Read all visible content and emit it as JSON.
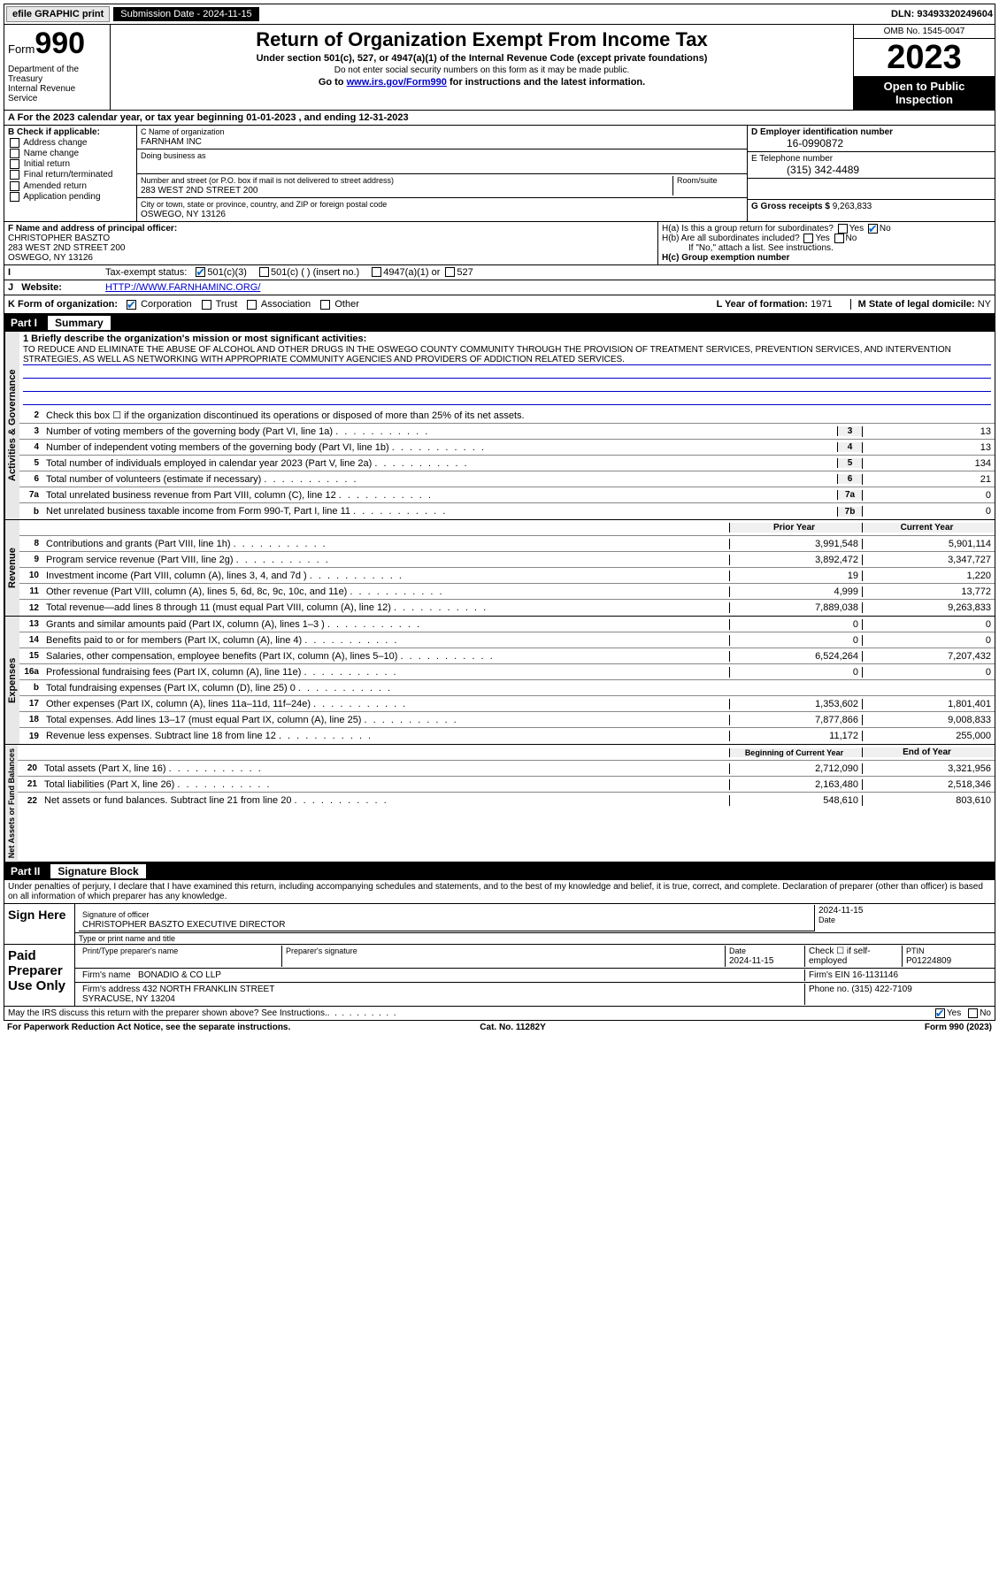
{
  "topbar": {
    "efile": "efile GRAPHIC print",
    "submission_label": "Submission Date - 2024-11-15",
    "dln": "DLN: 93493320249604"
  },
  "header": {
    "form_prefix": "Form",
    "form_number": "990",
    "dept": "Department of the Treasury\nInternal Revenue Service",
    "title": "Return of Organization Exempt From Income Tax",
    "sub1": "Under section 501(c), 527, or 4947(a)(1) of the Internal Revenue Code (except private foundations)",
    "sub2": "Do not enter social security numbers on this form as it may be made public.",
    "sub3_pre": "Go to ",
    "sub3_link": "www.irs.gov/Form990",
    "sub3_post": " for instructions and the latest information.",
    "omb": "OMB No. 1545-0047",
    "year": "2023",
    "open": "Open to Public Inspection"
  },
  "line_a": "A For the 2023 calendar year, or tax year beginning 01-01-2023  , and ending 12-31-2023",
  "section_b": {
    "title": "B Check if applicable:",
    "opts": [
      "Address change",
      "Name change",
      "Initial return",
      "Final return/terminated",
      "Amended return",
      "Application pending"
    ]
  },
  "section_c": {
    "name_lbl": "C Name of organization",
    "name": "FARNHAM INC",
    "dba_lbl": "Doing business as",
    "dba": "",
    "addr_lbl": "Number and street (or P.O. box if mail is not delivered to street address)",
    "room_lbl": "Room/suite",
    "addr": "283 WEST 2ND STREET 200",
    "city_lbl": "City or town, state or province, country, and ZIP or foreign postal code",
    "city": "OSWEGO, NY  13126"
  },
  "section_d": {
    "ein_lbl": "D Employer identification number",
    "ein": "16-0990872",
    "tel_lbl": "E Telephone number",
    "tel": "(315) 342-4489",
    "gross_lbl": "G Gross receipts $",
    "gross": "9,263,833"
  },
  "section_f": {
    "lbl": "F Name and address of principal officer:",
    "name": "CHRISTOPHER BASZTO",
    "addr1": "283 WEST 2ND STREET 200",
    "addr2": "OSWEGO, NY  13126"
  },
  "section_h": {
    "a": "H(a)  Is this a group return for subordinates?",
    "b": "H(b)  Are all subordinates included?",
    "note": "If \"No,\" attach a list. See instructions.",
    "c": "H(c)  Group exemption number "
  },
  "tax_status": {
    "lbl": "Tax-exempt status:",
    "o1": "501(c)(3)",
    "o2": "501(c) (  ) (insert no.)",
    "o3": "4947(a)(1) or",
    "o4": "527"
  },
  "website": {
    "lbl": "Website: ",
    "val": "HTTP://WWW.FARNHAMINC.ORG/"
  },
  "k_row": {
    "lbl": "K Form of organization:",
    "opts": [
      "Corporation",
      "Trust",
      "Association",
      "Other"
    ],
    "l_lbl": "L Year of formation:",
    "l_val": "1971",
    "m_lbl": "M State of legal domicile:",
    "m_val": "NY"
  },
  "part1": {
    "num": "Part I",
    "title": "Summary"
  },
  "mission": {
    "q": "1   Briefly describe the organization's mission or most significant activities:",
    "text": "TO REDUCE AND ELIMINATE THE ABUSE OF ALCOHOL AND OTHER DRUGS IN THE OSWEGO COUNTY COMMUNITY THROUGH THE PROVISION OF TREATMENT SERVICES, PREVENTION SERVICES, AND INTERVENTION STRATEGIES, AS WELL AS NETWORKING WITH APPROPRIATE COMMUNITY AGENCIES AND PROVIDERS OF ADDICTION RELATED SERVICES."
  },
  "gov_rows": [
    {
      "n": "2",
      "t": "Check this box  ☐  if the organization discontinued its operations or disposed of more than 25% of its net assets."
    },
    {
      "n": "3",
      "t": "Number of voting members of the governing body (Part VI, line 1a)",
      "bn": "3",
      "v": "13"
    },
    {
      "n": "4",
      "t": "Number of independent voting members of the governing body (Part VI, line 1b)",
      "bn": "4",
      "v": "13"
    },
    {
      "n": "5",
      "t": "Total number of individuals employed in calendar year 2023 (Part V, line 2a)",
      "bn": "5",
      "v": "134"
    },
    {
      "n": "6",
      "t": "Total number of volunteers (estimate if necessary)",
      "bn": "6",
      "v": "21"
    },
    {
      "n": "7a",
      "t": "Total unrelated business revenue from Part VIII, column (C), line 12",
      "bn": "7a",
      "v": "0"
    },
    {
      "n": "b",
      "t": "Net unrelated business taxable income from Form 990-T, Part I, line 11",
      "bn": "7b",
      "v": "0"
    }
  ],
  "col_headers": {
    "prior": "Prior Year",
    "current": "Current Year",
    "begin": "Beginning of Current Year",
    "end": "End of Year"
  },
  "rev_rows": [
    {
      "n": "8",
      "t": "Contributions and grants (Part VIII, line 1h)",
      "p": "3,991,548",
      "c": "5,901,114"
    },
    {
      "n": "9",
      "t": "Program service revenue (Part VIII, line 2g)",
      "p": "3,892,472",
      "c": "3,347,727"
    },
    {
      "n": "10",
      "t": "Investment income (Part VIII, column (A), lines 3, 4, and 7d )",
      "p": "19",
      "c": "1,220"
    },
    {
      "n": "11",
      "t": "Other revenue (Part VIII, column (A), lines 5, 6d, 8c, 9c, 10c, and 11e)",
      "p": "4,999",
      "c": "13,772"
    },
    {
      "n": "12",
      "t": "Total revenue—add lines 8 through 11 (must equal Part VIII, column (A), line 12)",
      "p": "7,889,038",
      "c": "9,263,833"
    }
  ],
  "exp_rows": [
    {
      "n": "13",
      "t": "Grants and similar amounts paid (Part IX, column (A), lines 1–3 )",
      "p": "0",
      "c": "0"
    },
    {
      "n": "14",
      "t": "Benefits paid to or for members (Part IX, column (A), line 4)",
      "p": "0",
      "c": "0"
    },
    {
      "n": "15",
      "t": "Salaries, other compensation, employee benefits (Part IX, column (A), lines 5–10)",
      "p": "6,524,264",
      "c": "7,207,432"
    },
    {
      "n": "16a",
      "t": "Professional fundraising fees (Part IX, column (A), line 11e)",
      "p": "0",
      "c": "0"
    },
    {
      "n": "b",
      "t": "Total fundraising expenses (Part IX, column (D), line 25) 0",
      "p": "",
      "c": "",
      "gray": true
    },
    {
      "n": "17",
      "t": "Other expenses (Part IX, column (A), lines 11a–11d, 11f–24e)",
      "p": "1,353,602",
      "c": "1,801,401"
    },
    {
      "n": "18",
      "t": "Total expenses. Add lines 13–17 (must equal Part IX, column (A), line 25)",
      "p": "7,877,866",
      "c": "9,008,833"
    },
    {
      "n": "19",
      "t": "Revenue less expenses. Subtract line 18 from line 12",
      "p": "11,172",
      "c": "255,000"
    }
  ],
  "net_rows": [
    {
      "n": "20",
      "t": "Total assets (Part X, line 16)",
      "p": "2,712,090",
      "c": "3,321,956"
    },
    {
      "n": "21",
      "t": "Total liabilities (Part X, line 26)",
      "p": "2,163,480",
      "c": "2,518,346"
    },
    {
      "n": "22",
      "t": "Net assets or fund balances. Subtract line 21 from line 20",
      "p": "548,610",
      "c": "803,610"
    }
  ],
  "vtabs": {
    "gov": "Activities & Governance",
    "rev": "Revenue",
    "exp": "Expenses",
    "net": "Net Assets or Fund Balances"
  },
  "part2": {
    "num": "Part II",
    "title": "Signature Block"
  },
  "sig": {
    "declaration": "Under penalties of perjury, I declare that I have examined this return, including accompanying schedules and statements, and to the best of my knowledge and belief, it is true, correct, and complete. Declaration of preparer (other than officer) is based on all information of which preparer has any knowledge.",
    "sign_here": "Sign Here",
    "officer_sig_lbl": "Signature of officer",
    "officer": "CHRISTOPHER BASZTO  EXECUTIVE DIRECTOR",
    "type_lbl": "Type or print name and title",
    "date_lbl": "Date",
    "date": "2024-11-15",
    "paid": "Paid Preparer Use Only",
    "prep_name_lbl": "Print/Type preparer's name",
    "prep_sig_lbl": "Preparer's signature",
    "prep_date": "2024-11-15",
    "self_emp": "Check ☐ if self-employed",
    "ptin_lbl": "PTIN",
    "ptin": "P01224809",
    "firm_name_lbl": "Firm's name ",
    "firm_name": "BONADIO & CO LLP",
    "firm_ein_lbl": "Firm's EIN ",
    "firm_ein": "16-1131146",
    "firm_addr_lbl": "Firm's address ",
    "firm_addr": "432 NORTH FRANKLIN STREET\nSYRACUSE, NY  13204",
    "phone_lbl": "Phone no.",
    "phone": "(315) 422-7109",
    "discuss": "May the IRS discuss this return with the preparer shown above? See Instructions."
  },
  "footer": {
    "left": "For Paperwork Reduction Act Notice, see the separate instructions.",
    "mid": "Cat. No. 11282Y",
    "right": "Form 990 (2023)"
  },
  "yesno": {
    "yes": "Yes",
    "no": "No"
  }
}
